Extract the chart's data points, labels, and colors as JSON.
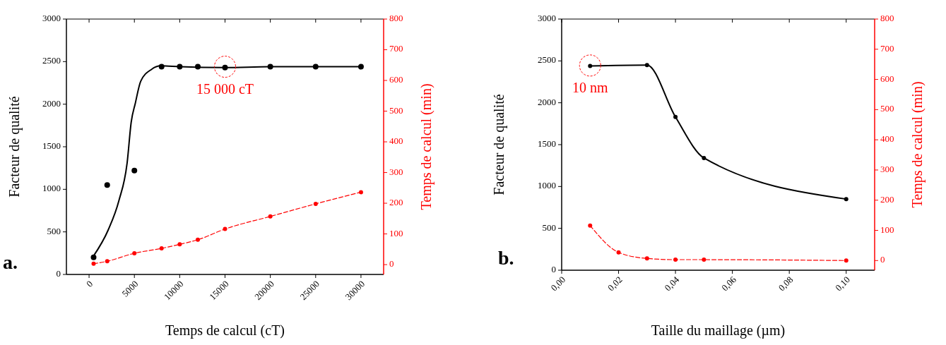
{
  "chart_data": [
    {
      "type": "line",
      "xlabel": "Temps de calcul (cT)",
      "ylabel": "Facteur de qualité",
      "y2label": "Temps de calcul (min)",
      "xlim": [
        -2500,
        32500
      ],
      "xticks": [
        0,
        5000,
        10000,
        15000,
        20000,
        25000,
        30000
      ],
      "ylim": [
        0,
        3000
      ],
      "yticks": [
        0,
        500,
        1000,
        1500,
        2000,
        2500,
        3000
      ],
      "y2lim": [
        -32,
        800
      ],
      "y2ticks": [
        0,
        100,
        200,
        300,
        400,
        500,
        600,
        700,
        800
      ],
      "grid": false,
      "series": [
        {
          "type": "scatter",
          "color": "#000000",
          "marker": "circle",
          "x": [
            500,
            2000,
            5000,
            8000,
            10000,
            12000,
            15000,
            20000,
            25000,
            30000
          ],
          "values": [
            200,
            1050,
            1220,
            2440,
            2440,
            2440,
            2430,
            2440,
            2440,
            2440
          ]
        },
        {
          "color": "#000000",
          "marker": "none",
          "line_style": "solid",
          "x": [
            450,
            2100,
            3300,
            4200,
            4650,
            5100,
            5700,
            6900,
            7900,
            10000,
            15000,
            20000,
            25000,
            30000
          ],
          "values": [
            210,
            520,
            870,
            1310,
            1790,
            2010,
            2270,
            2410,
            2450,
            2440,
            2430,
            2440,
            2440,
            2440
          ]
        },
        {
          "axis": "y2",
          "color": "#ff0000",
          "marker": "circle",
          "line_style": "dashed",
          "x": [
            500,
            2000,
            5000,
            8000,
            10000,
            12000,
            15000,
            20000,
            25000,
            30000
          ],
          "values": [
            3,
            11,
            37,
            53,
            66,
            81,
            116,
            157,
            198,
            236
          ]
        }
      ],
      "annotations": [
        "a.",
        {
          "text": "15 000 cT",
          "x": 15000,
          "y": 2440
        }
      ]
    },
    {
      "type": "line",
      "xlabel": "Taille du maillage (µm)",
      "ylabel": "Facteur de qualité",
      "y2label": "Temps de calcul (min)",
      "xlim": [
        0,
        0.11
      ],
      "xticks": [
        {
          "value": 0,
          "label": "0,00"
        },
        {
          "value": 0.02,
          "label": "0,02"
        },
        {
          "value": 0.04,
          "label": "0,04"
        },
        {
          "value": 0.06,
          "label": "0,06"
        },
        {
          "value": 0.08,
          "label": "0,08"
        },
        {
          "value": 0.1,
          "label": "0,10"
        }
      ],
      "ylim": [
        0,
        3000
      ],
      "yticks": [
        0,
        500,
        1000,
        1500,
        2000,
        2500,
        3000
      ],
      "y2lim": [
        -32,
        800
      ],
      "y2ticks": [
        0,
        100,
        200,
        300,
        400,
        500,
        600,
        700,
        800
      ],
      "grid": false,
      "series": [
        {
          "color": "#000000",
          "marker": "circle",
          "line_style": "solid",
          "x": [
            0.01,
            0.03,
            0.04,
            0.05,
            0.1
          ],
          "values": [
            2440,
            2450,
            1830,
            1340,
            850
          ]
        },
        {
          "axis": "y2",
          "color": "#ff0000",
          "marker": "circle",
          "line_style": "dashed",
          "x": [
            0.01,
            0.02,
            0.03,
            0.04,
            0.05,
            0.1
          ],
          "values": [
            116,
            27,
            7,
            3,
            3,
            0
          ]
        }
      ],
      "annotations": [
        "b.",
        {
          "text": "10 nm",
          "x": 0.01,
          "y": 2445
        }
      ]
    }
  ]
}
